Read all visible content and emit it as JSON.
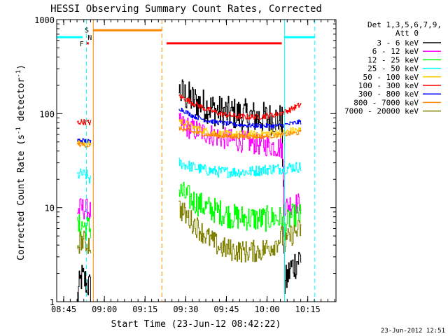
{
  "chart_data": {
    "type": "line",
    "title": "HESSI Observing Summary Count Rates, Corrected",
    "xlabel": "Start Time (23-Jun-12 08:42:22)",
    "ylabel_main": "Corrected Count Rate (s",
    "ylabel_sup1": "-1",
    "ylabel_mid": " detector",
    "ylabel_sup2": "-1",
    "ylabel_end": ")",
    "ylabel": "Corrected Count Rate (s-1 detector-1)",
    "y_scale": "log",
    "ylim": [
      1,
      1000
    ],
    "xlim_minutes": [
      0,
      103
    ],
    "x_tick_minutes": [
      2.6,
      17.6,
      32.6,
      47.6,
      62.6,
      77.6,
      92.6
    ],
    "x_tick_labels": [
      "08:45",
      "09:00",
      "09:15",
      "09:30",
      "09:45",
      "10:00",
      "10:15"
    ],
    "y_tick_values": [
      1,
      10,
      100,
      1000
    ],
    "y_tick_labels": [
      "1",
      "10",
      "100",
      "1000"
    ],
    "legend": {
      "header": [
        "Det 1,3,5,6,7,9,",
        "Att 0"
      ],
      "position": "right",
      "entries": [
        {
          "label": "3 - 6 keV",
          "color": "#000000"
        },
        {
          "label": "6 - 12 keV",
          "color": "#ff00ff"
        },
        {
          "label": "12 - 25 keV",
          "color": "#00ff00"
        },
        {
          "label": "25 - 50 keV",
          "color": "#00ffff"
        },
        {
          "label": "50 - 100 keV",
          "color": "#ffcc00"
        },
        {
          "label": "100 - 300 keV",
          "color": "#ff0000"
        },
        {
          "label": "300 - 800 keV",
          "color": "#0000ff"
        },
        {
          "label": "800 - 7000 keV",
          "color": "#ff8800"
        },
        {
          "label": "7000 - 20000 keV",
          "color": "#808000"
        }
      ]
    },
    "segments": [
      {
        "from": 7.5,
        "to": 12.7,
        "gap_after": true
      },
      {
        "from": 45.0,
        "to": 90.0
      }
    ],
    "series": [
      {
        "name": "3 - 6 keV",
        "color": "#000000",
        "noise": 0.18,
        "points": [
          [
            7.5,
            1.1
          ],
          [
            9,
            1.8
          ],
          [
            11,
            1.6
          ],
          [
            12.7,
            1.3
          ],
          [
            45,
            170
          ],
          [
            50,
            140
          ],
          [
            55,
            120
          ],
          [
            60,
            105
          ],
          [
            65,
            100
          ],
          [
            70,
            95
          ],
          [
            75,
            90
          ],
          [
            80,
            88
          ],
          [
            83,
            85
          ],
          [
            84,
            1.5
          ],
          [
            86,
            2.2
          ],
          [
            88,
            2.6
          ],
          [
            90,
            3
          ]
        ]
      },
      {
        "name": "6 - 12 keV",
        "color": "#ff00ff",
        "noise": 0.12,
        "points": [
          [
            7.5,
            9
          ],
          [
            9,
            10
          ],
          [
            11,
            9.5
          ],
          [
            12.7,
            9
          ],
          [
            45,
            78
          ],
          [
            50,
            68
          ],
          [
            55,
            62
          ],
          [
            60,
            56
          ],
          [
            65,
            52
          ],
          [
            70,
            50
          ],
          [
            75,
            47
          ],
          [
            80,
            45
          ],
          [
            83,
            43
          ],
          [
            84,
            10
          ],
          [
            86,
            11
          ],
          [
            88,
            11
          ],
          [
            90,
            11
          ]
        ]
      },
      {
        "name": "12 - 25 keV",
        "color": "#00ff00",
        "noise": 0.14,
        "points": [
          [
            7.5,
            6
          ],
          [
            9,
            6.5
          ],
          [
            11,
            6.2
          ],
          [
            12.7,
            6
          ],
          [
            45,
            15
          ],
          [
            50,
            12
          ],
          [
            55,
            10
          ],
          [
            60,
            9
          ],
          [
            65,
            8
          ],
          [
            70,
            7.8
          ],
          [
            75,
            7.5
          ],
          [
            80,
            7.8
          ],
          [
            83,
            7.5
          ],
          [
            84,
            6
          ],
          [
            86,
            8
          ],
          [
            88,
            8
          ],
          [
            90,
            8
          ]
        ]
      },
      {
        "name": "25 - 50 keV",
        "color": "#00ffff",
        "noise": 0.06,
        "points": [
          [
            7.5,
            22
          ],
          [
            9,
            23
          ],
          [
            11,
            22
          ],
          [
            12.7,
            19
          ],
          [
            45,
            30
          ],
          [
            50,
            27
          ],
          [
            55,
            25
          ],
          [
            60,
            24
          ],
          [
            65,
            24
          ],
          [
            70,
            24
          ],
          [
            75,
            25
          ],
          [
            80,
            26
          ],
          [
            83,
            26
          ],
          [
            84,
            26
          ],
          [
            86,
            27
          ],
          [
            88,
            27
          ],
          [
            90,
            27
          ]
        ]
      },
      {
        "name": "50 - 100 keV",
        "color": "#ffcc00",
        "noise": 0.04,
        "points": [
          [
            7.5,
            48
          ],
          [
            9,
            50
          ],
          [
            11,
            49
          ],
          [
            12.7,
            48
          ],
          [
            45,
            85
          ],
          [
            50,
            72
          ],
          [
            55,
            65
          ],
          [
            60,
            61
          ],
          [
            65,
            60
          ],
          [
            70,
            60
          ],
          [
            75,
            61
          ],
          [
            80,
            62
          ],
          [
            83,
            63
          ],
          [
            84,
            63
          ],
          [
            86,
            65
          ],
          [
            88,
            66
          ],
          [
            90,
            67
          ]
        ]
      },
      {
        "name": "100 - 300 keV",
        "color": "#ff0000",
        "noise": 0.03,
        "points": [
          [
            7.5,
            80
          ],
          [
            9,
            82
          ],
          [
            11,
            81
          ],
          [
            12.7,
            80
          ],
          [
            45,
            155
          ],
          [
            50,
            130
          ],
          [
            55,
            112
          ],
          [
            60,
            100
          ],
          [
            65,
            95
          ],
          [
            70,
            92
          ],
          [
            75,
            93
          ],
          [
            80,
            97
          ],
          [
            83,
            102
          ],
          [
            84,
            105
          ],
          [
            86,
            110
          ],
          [
            88,
            118
          ],
          [
            90,
            125
          ]
        ]
      },
      {
        "name": "300 - 800 keV",
        "color": "#0000ff",
        "noise": 0.025,
        "points": [
          [
            7.5,
            52
          ],
          [
            9,
            52
          ],
          [
            11,
            51
          ],
          [
            12.7,
            50
          ],
          [
            45,
            115
          ],
          [
            50,
            95
          ],
          [
            55,
            85
          ],
          [
            60,
            80
          ],
          [
            65,
            77
          ],
          [
            70,
            75
          ],
          [
            75,
            74
          ],
          [
            80,
            74
          ],
          [
            83,
            75
          ],
          [
            84,
            76
          ],
          [
            86,
            78
          ],
          [
            88,
            80
          ],
          [
            90,
            82
          ]
        ]
      },
      {
        "name": "800 - 7000 keV",
        "color": "#ff8800",
        "noise": 0.025,
        "points": [
          [
            7.5,
            47
          ],
          [
            9,
            47
          ],
          [
            11,
            46
          ],
          [
            12.7,
            46
          ],
          [
            45,
            70
          ],
          [
            50,
            64
          ],
          [
            55,
            60
          ],
          [
            60,
            58
          ],
          [
            65,
            57
          ],
          [
            70,
            57
          ],
          [
            75,
            57
          ],
          [
            80,
            58
          ],
          [
            83,
            59
          ],
          [
            84,
            60
          ],
          [
            86,
            61
          ],
          [
            88,
            62
          ],
          [
            90,
            63
          ]
        ]
      },
      {
        "name": "7000 - 20000 keV",
        "color": "#808000",
        "noise": 0.12,
        "points": [
          [
            7.5,
            4
          ],
          [
            9,
            4.5
          ],
          [
            11,
            4.2
          ],
          [
            12.7,
            4
          ],
          [
            45,
            10
          ],
          [
            50,
            7
          ],
          [
            55,
            5
          ],
          [
            60,
            3.8
          ],
          [
            65,
            3.5
          ],
          [
            70,
            3.4
          ],
          [
            75,
            3.5
          ],
          [
            80,
            4
          ],
          [
            83,
            5
          ],
          [
            84,
            4
          ],
          [
            86,
            5
          ],
          [
            88,
            5.5
          ],
          [
            90,
            6
          ]
        ]
      }
    ],
    "bars": [
      {
        "name": "night-bar-1",
        "label": "",
        "color": "#00ffff",
        "from": 0.0,
        "to": 9.6,
        "y": 650
      },
      {
        "name": "night-bar-2",
        "label": "",
        "color": "#00ffff",
        "from": 84.0,
        "to": 95.2,
        "y": 650
      },
      {
        "name": "saa-bar",
        "label": "",
        "color": "#ff8800",
        "from": 13.5,
        "to": 38.8,
        "y": 770
      },
      {
        "name": "flare-bar",
        "label": "",
        "color": "#ff0000",
        "from": 40.5,
        "to": 83.0,
        "y": 560
      }
    ],
    "vlines": [
      {
        "name": "night-start-1",
        "x": 0.0,
        "color": "#00ffff",
        "dashed": false
      },
      {
        "name": "night-end-1",
        "x": 11.0,
        "color": "#00ffff",
        "dashed": true
      },
      {
        "name": "saa-start",
        "x": 13.5,
        "color": "#ff8800",
        "dashed": false
      },
      {
        "name": "saa-end",
        "x": 38.8,
        "color": "#ff8800",
        "dashed": true
      },
      {
        "name": "night-start-2",
        "x": 84.0,
        "color": "#00ffff",
        "dashed": false
      },
      {
        "name": "night-end-2",
        "x": 95.2,
        "color": "#00ffff",
        "dashed": true
      }
    ],
    "flag_labels": [
      {
        "name": "flag-s",
        "text": "S",
        "color": "#ff8800",
        "x": 11.1,
        "y": 780
      },
      {
        "name": "flag-n",
        "text": "N",
        "color": "#00ffff",
        "x": 12.2,
        "y": 650
      },
      {
        "name": "flag-f",
        "text": "F",
        "color": "#ff0000",
        "x": 9.2,
        "y": 560
      }
    ],
    "flag_dots": [
      {
        "name": "flag-f-dot",
        "x": 11.3,
        "y": 560,
        "color": "#ff0000"
      }
    ],
    "footer": "23-Jun-2012 12:51"
  }
}
